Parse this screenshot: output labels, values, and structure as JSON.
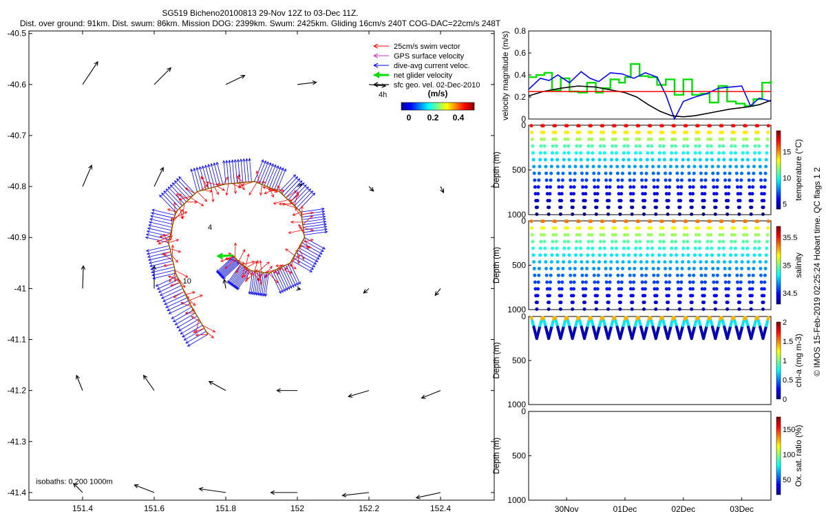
{
  "header": {
    "line1": "SG519 Bicheno20100813 29-Nov 12Z to 03-Dec 11Z.",
    "line2": "Dist. over ground: 91km. Dist. swum: 86km. Mission DOG: 2399km. Swum: 2425km. Gliding 16cm/s 240T COG-DAC=22cm/s 248T"
  },
  "copyright": "© IMOS 15-Feb-2019 02:25:24 Hobart time. QC flags 1 2",
  "colorbar_labels": [
    "0",
    "0.2",
    "0.4"
  ],
  "colors": {
    "swim": "#ff0000",
    "gps": "#cc33cc",
    "dac": "#0000ff",
    "net": "#00dd00",
    "geo": "#000000",
    "track_line": "#ffaa00"
  },
  "chart_data": [
    {
      "id": "map",
      "type": "scatter",
      "xlim": [
        151.25,
        152.55
      ],
      "ylim": [
        -41.415,
        -40.495
      ],
      "x_ticks": [
        151.4,
        151.6,
        151.8,
        152,
        152.2,
        152.4
      ],
      "x_tick_labels": [
        "151.4",
        "151.6",
        "151.8",
        "152",
        "152.2",
        "152.4"
      ],
      "y_ticks": [
        -40.5,
        -40.6,
        -40.7,
        -40.8,
        -40.9,
        -41,
        -41.1,
        -41.2,
        -41.3,
        -41.4
      ],
      "y_tick_labels": [
        "-40.5",
        "-40.6",
        "-40.7",
        "-40.8",
        "-40.9",
        "-41",
        "-41.1",
        "-41.2",
        "-41.3",
        "-41.4"
      ],
      "legend": {
        "position": "top-right",
        "entries": [
          "25cm/s swim vector",
          "GPS surface velocity",
          "dive-avg current veloc.",
          "net glider velocity",
          "sfc geo. vel. 02-Dec-2010"
        ],
        "subtitle": "4h",
        "colorbar_unit": "(m/s)"
      },
      "annotations": [
        {
          "text": "4",
          "lon": 151.75,
          "lat": -40.885
        },
        {
          "text": "10",
          "lon": 151.68,
          "lat": -40.99
        },
        {
          "text": "isobaths: 0   200   1000m",
          "lon": 151.27,
          "lat": -41.383
        }
      ],
      "glider_track": [
        {
          "lon": 151.75,
          "lat": -41.09
        },
        {
          "lon": 151.7,
          "lat": -41.03
        },
        {
          "lon": 151.66,
          "lat": -40.97
        },
        {
          "lon": 151.64,
          "lat": -40.91
        },
        {
          "lon": 151.66,
          "lat": -40.85
        },
        {
          "lon": 151.72,
          "lat": -40.81
        },
        {
          "lon": 151.8,
          "lat": -40.795
        },
        {
          "lon": 151.88,
          "lat": -40.79
        },
        {
          "lon": 151.95,
          "lat": -40.81
        },
        {
          "lon": 152.01,
          "lat": -40.85
        },
        {
          "lon": 152.02,
          "lat": -40.9
        },
        {
          "lon": 151.98,
          "lat": -40.95
        },
        {
          "lon": 151.92,
          "lat": -40.97
        },
        {
          "lon": 151.87,
          "lat": -40.965
        },
        {
          "lon": 151.84,
          "lat": -40.95
        },
        {
          "lon": 151.82,
          "lat": -40.935
        }
      ],
      "net_glider_velocity": {
        "lon": 151.82,
        "lat": -40.935,
        "u": -0.22,
        "v": -0.01
      },
      "geo_vectors": [
        {
          "lon": 151.4,
          "lat": -40.6,
          "u": 0.2,
          "v": 0.3
        },
        {
          "lon": 151.6,
          "lat": -40.6,
          "u": 0.22,
          "v": 0.22
        },
        {
          "lon": 151.8,
          "lat": -40.6,
          "u": 0.25,
          "v": 0.12
        },
        {
          "lon": 152.0,
          "lat": -40.6,
          "u": 0.25,
          "v": 0.03
        },
        {
          "lon": 152.2,
          "lat": -40.6,
          "u": 0.22,
          "v": -0.02
        },
        {
          "lon": 151.4,
          "lat": -40.8,
          "u": 0.12,
          "v": 0.28
        },
        {
          "lon": 151.6,
          "lat": -40.8,
          "u": 0.12,
          "v": 0.25
        },
        {
          "lon": 152.0,
          "lat": -40.8,
          "u": 0.06,
          "v": 0.03
        },
        {
          "lon": 152.2,
          "lat": -40.8,
          "u": 0.06,
          "v": -0.06
        },
        {
          "lon": 152.4,
          "lat": -40.8,
          "u": 0.04,
          "v": -0.08
        },
        {
          "lon": 151.4,
          "lat": -41.0,
          "u": 0.01,
          "v": 0.3
        },
        {
          "lon": 151.6,
          "lat": -41.0,
          "u": 0.0,
          "v": 0.3
        },
        {
          "lon": 151.8,
          "lat": -41.0,
          "u": -0.02,
          "v": 0.12
        },
        {
          "lon": 152.0,
          "lat": -41.0,
          "u": 0.04,
          "v": -0.01
        },
        {
          "lon": 152.2,
          "lat": -41.0,
          "u": -0.07,
          "v": -0.06
        },
        {
          "lon": 152.4,
          "lat": -41.0,
          "u": -0.07,
          "v": -0.09
        },
        {
          "lon": 151.4,
          "lat": -41.2,
          "u": -0.08,
          "v": 0.2
        },
        {
          "lon": 151.6,
          "lat": -41.2,
          "u": -0.14,
          "v": 0.2
        },
        {
          "lon": 151.8,
          "lat": -41.2,
          "u": -0.22,
          "v": 0.12
        },
        {
          "lon": 152.0,
          "lat": -41.2,
          "u": -0.27,
          "v": 0.0
        },
        {
          "lon": 152.2,
          "lat": -41.2,
          "u": -0.27,
          "v": -0.08
        },
        {
          "lon": 152.4,
          "lat": -41.2,
          "u": -0.25,
          "v": -0.1
        },
        {
          "lon": 151.4,
          "lat": -41.4,
          "u": -0.12,
          "v": 0.12
        },
        {
          "lon": 151.6,
          "lat": -41.4,
          "u": -0.26,
          "v": 0.1
        },
        {
          "lon": 151.8,
          "lat": -41.4,
          "u": -0.35,
          "v": 0.05
        },
        {
          "lon": 152.0,
          "lat": -41.4,
          "u": -0.35,
          "v": 0.0
        },
        {
          "lon": 152.2,
          "lat": -41.4,
          "u": -0.35,
          "v": -0.04
        },
        {
          "lon": 152.4,
          "lat": -41.4,
          "u": -0.32,
          "v": -0.07
        }
      ]
    },
    {
      "id": "velocity",
      "type": "line",
      "ylabel": "velocity magnitude (m/s)",
      "xlim": [
        29.35,
        33.5
      ],
      "ylim": [
        0,
        0.8
      ],
      "y_ticks": [
        0,
        0.2,
        0.4,
        0.6,
        0.8
      ],
      "y_tick_labels": [
        "0",
        "0.2",
        "0.4",
        "0.6",
        "0.8"
      ],
      "series": [
        {
          "key": "net",
          "color": "#00dd00",
          "x": [
            29.35,
            29.48,
            29.62,
            29.75,
            29.9,
            30.05,
            30.2,
            30.35,
            30.5,
            30.62,
            30.75,
            30.9,
            31.0,
            31.1,
            31.25,
            31.4,
            31.55,
            31.7,
            31.85,
            32.0,
            32.15,
            32.3,
            32.45,
            32.6,
            32.75,
            32.9,
            33.05,
            33.2,
            33.35,
            33.5
          ],
          "y": [
            0.38,
            0.4,
            0.42,
            0.26,
            0.37,
            0.25,
            0.24,
            0.33,
            0.24,
            0.28,
            0.36,
            0.33,
            0.38,
            0.5,
            0.39,
            0.38,
            0.31,
            0.36,
            0.22,
            0.36,
            0.22,
            0.23,
            0.15,
            0.3,
            0.16,
            0.14,
            0.12,
            0.18,
            0.33,
            0.35
          ]
        },
        {
          "key": "dac",
          "color": "#0000ff",
          "x": [
            29.35,
            29.55,
            29.7,
            29.85,
            30.05,
            30.25,
            30.4,
            30.55,
            30.75,
            30.95,
            31.15,
            31.35,
            31.55,
            31.7,
            31.85,
            32.0,
            32.2,
            32.4,
            32.6,
            32.8,
            33.0,
            33.15,
            33.3,
            33.5
          ],
          "y": [
            0.27,
            0.37,
            0.35,
            0.4,
            0.33,
            0.43,
            0.37,
            0.34,
            0.42,
            0.41,
            0.37,
            0.42,
            0.38,
            0.22,
            0.0,
            0.16,
            0.2,
            0.23,
            0.28,
            0.29,
            0.3,
            0.12,
            0.19,
            0.16
          ]
        },
        {
          "key": "geo",
          "color": "#000000",
          "x": [
            29.35,
            29.6,
            29.9,
            30.2,
            30.5,
            30.8,
            31.0,
            31.2,
            31.4,
            31.6,
            31.8,
            32.0,
            32.2,
            32.5,
            32.8,
            33.1,
            33.3,
            33.5
          ],
          "y": [
            0.21,
            0.25,
            0.28,
            0.3,
            0.29,
            0.26,
            0.24,
            0.2,
            0.13,
            0.07,
            0.03,
            0.02,
            0.03,
            0.06,
            0.09,
            0.11,
            0.13,
            0.17
          ]
        },
        {
          "key": "swim",
          "color": "#ff0000",
          "x": [
            29.35,
            33.5
          ],
          "y": [
            0.25,
            0.25
          ]
        }
      ]
    },
    {
      "id": "temperature",
      "type": "scatter",
      "ylabel": "Depth (m)",
      "clabel": "temperature (°C)",
      "ylim": [
        1000,
        0
      ],
      "y_ticks": [
        0,
        500,
        1000
      ],
      "y_tick_labels": [
        "0",
        "500",
        "1000"
      ],
      "c_ticks": [
        5,
        10,
        15
      ],
      "c_tick_labels": [
        "5",
        "10",
        "15"
      ],
      "clim": [
        4,
        19
      ],
      "dives": 20,
      "max_depth": 1000
    },
    {
      "id": "salinity",
      "type": "scatter",
      "ylabel": "Depth (m)",
      "clabel": "salinity",
      "ylim": [
        1000,
        0
      ],
      "y_ticks": [
        0,
        500,
        1000
      ],
      "y_tick_labels": [
        "0",
        "500",
        "1000"
      ],
      "c_ticks": [
        34.5,
        35,
        35.5
      ],
      "c_tick_labels": [
        "34.5",
        "35",
        "35.5"
      ],
      "clim": [
        34.3,
        35.7
      ],
      "dives": 20,
      "max_depth": 1000
    },
    {
      "id": "chla",
      "type": "scatter",
      "ylabel": "Depth (m)",
      "clabel": "chl-a (mg m-3)",
      "ylim": [
        1000,
        0
      ],
      "y_ticks": [
        0,
        500,
        1000
      ],
      "y_tick_labels": [
        "0",
        "500",
        "1000"
      ],
      "c_ticks": [
        0,
        0.5,
        1,
        1.5,
        2
      ],
      "c_tick_labels": [
        "0",
        "0.5",
        "1",
        "1.5",
        "2"
      ],
      "clim": [
        0,
        2
      ],
      "dives": 20,
      "max_depth": 250
    },
    {
      "id": "oxygen",
      "type": "scatter",
      "ylabel": "Depth (m)",
      "clabel": "Ox. sat. ratio (%)",
      "ylim": [
        1000,
        0
      ],
      "y_ticks": [
        0,
        500,
        1000
      ],
      "y_tick_labels": [
        "0",
        "500",
        "1000"
      ],
      "c_ticks": [
        50,
        100,
        150
      ],
      "c_tick_labels": [
        "50",
        "100",
        "150"
      ],
      "clim": [
        20,
        175
      ],
      "x_ticks": [
        30,
        31,
        32,
        33
      ],
      "x_tick_labels": [
        "30Nov",
        "01Dec",
        "02Dec",
        "03Dec"
      ]
    }
  ]
}
